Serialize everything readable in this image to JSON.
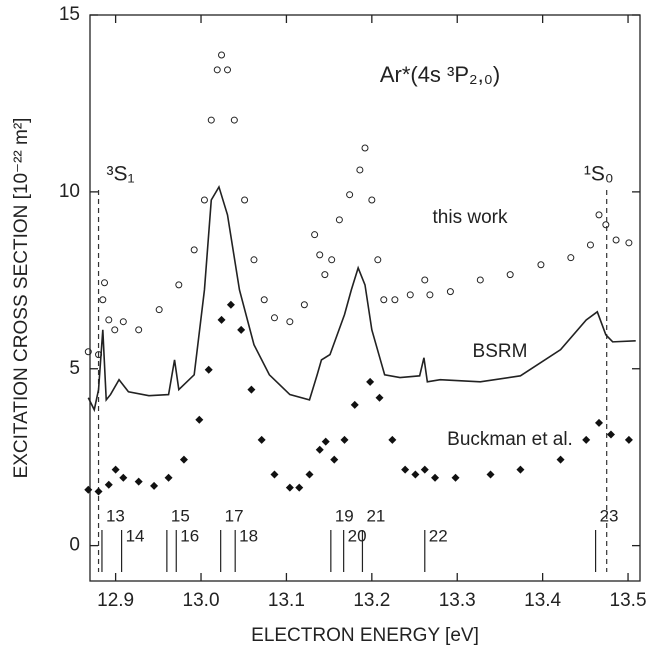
{
  "chart_data": {
    "type": "scatter",
    "title": "Ar*(4s ³P₂,₀)",
    "x_label": "ELECTRON ENERGY [eV]",
    "y_label": "EXCITATION CROSS SECTION [10⁻²² m²]",
    "xlim": [
      12.87,
      13.514
    ],
    "ylim": [
      -1,
      15
    ],
    "xticks": [
      12.9,
      {
        "value": 13.0,
        "label": "13.0"
      },
      13.1,
      13.2,
      13.3,
      13.4,
      13.5
    ],
    "yticks": [
      0,
      5,
      10,
      15
    ],
    "series": [
      {
        "name": "this work",
        "marker": "open-circle",
        "color": "#222222",
        "x": [
          12.868,
          12.88,
          12.885,
          12.887,
          12.892,
          12.899,
          12.909,
          12.927,
          12.951,
          12.974,
          12.992,
          13.004,
          13.012,
          13.019,
          13.024,
          13.031,
          13.039,
          13.051,
          13.062,
          13.074,
          13.086,
          13.104,
          13.121,
          13.133,
          13.139,
          13.145,
          13.153,
          13.162,
          13.174,
          13.186,
          13.192,
          13.2,
          13.207,
          13.214,
          13.227,
          13.245,
          13.262,
          13.268,
          13.292,
          13.327,
          13.362,
          13.398,
          13.433,
          13.456,
          13.466,
          13.474,
          13.486,
          13.501
        ],
        "values": [
          5.48,
          5.4,
          6.95,
          7.43,
          6.38,
          6.1,
          6.33,
          6.1,
          6.67,
          7.37,
          8.36,
          9.77,
          12.03,
          13.45,
          13.87,
          13.45,
          12.03,
          9.77,
          8.08,
          6.95,
          6.44,
          6.33,
          6.81,
          8.79,
          8.22,
          7.66,
          8.08,
          9.21,
          9.92,
          10.62,
          11.24,
          9.77,
          8.08,
          6.95,
          6.95,
          7.09,
          7.51,
          7.09,
          7.18,
          7.51,
          7.66,
          7.94,
          8.14,
          8.5,
          9.35,
          9.07,
          8.64,
          8.56
        ]
      },
      {
        "name": "BSRM",
        "marker": "line",
        "color": "#222222",
        "x": [
          12.868,
          12.875,
          12.88,
          12.885,
          12.889,
          12.894,
          12.904,
          12.915,
          12.939,
          12.962,
          12.969,
          12.974,
          12.992,
          13.004,
          13.012,
          13.021,
          13.031,
          13.045,
          13.062,
          13.08,
          13.104,
          13.127,
          13.136,
          13.141,
          13.151,
          13.168,
          13.176,
          13.184,
          13.192,
          13.2,
          13.215,
          13.233,
          13.256,
          13.261,
          13.265,
          13.28,
          13.327,
          13.374,
          13.421,
          13.451,
          13.464,
          13.474,
          13.482,
          13.509
        ],
        "values": [
          4.18,
          3.84,
          4.41,
          6.1,
          4.12,
          4.27,
          4.69,
          4.35,
          4.24,
          4.27,
          5.25,
          4.41,
          4.83,
          7.23,
          9.77,
          10.14,
          9.35,
          7.23,
          5.68,
          4.83,
          4.27,
          4.12,
          4.83,
          5.25,
          5.4,
          6.53,
          7.23,
          7.85,
          7.37,
          6.1,
          4.83,
          4.75,
          4.8,
          5.31,
          4.63,
          4.69,
          4.63,
          4.8,
          5.54,
          6.38,
          6.61,
          5.96,
          5.76,
          5.79
        ]
      },
      {
        "name": "Buckman et al.",
        "marker": "diamond",
        "color": "#111111",
        "x": [
          12.868,
          12.88,
          12.892,
          12.9,
          12.909,
          12.927,
          12.945,
          12.962,
          12.98,
          12.998,
          13.009,
          13.024,
          13.035,
          13.047,
          13.059,
          13.071,
          13.086,
          13.104,
          13.115,
          13.127,
          13.139,
          13.146,
          13.156,
          13.168,
          13.18,
          13.198,
          13.209,
          13.224,
          13.239,
          13.251,
          13.262,
          13.274,
          13.298,
          13.339,
          13.374,
          13.421,
          13.451,
          13.466,
          13.48,
          13.501
        ],
        "values": [
          1.58,
          1.53,
          1.72,
          2.15,
          1.92,
          1.81,
          1.69,
          1.92,
          2.43,
          3.56,
          4.97,
          6.38,
          6.81,
          6.1,
          4.41,
          2.99,
          2.01,
          1.64,
          1.64,
          2.01,
          2.71,
          2.94,
          2.43,
          2.99,
          3.98,
          4.63,
          4.18,
          2.99,
          2.15,
          2.01,
          2.15,
          1.92,
          1.92,
          2.01,
          2.15,
          2.43,
          2.99,
          3.47,
          3.14,
          2.99
        ]
      }
    ],
    "thresholds": [
      {
        "label": "³S₁",
        "x": 12.88
      },
      {
        "label": "¹S₀",
        "x": 13.475
      }
    ],
    "resonances": [
      {
        "label": "13",
        "x": 12.884
      },
      {
        "label": "14",
        "x": 12.907
      },
      {
        "label": "15",
        "x": 12.96
      },
      {
        "label": "16",
        "x": 12.971
      },
      {
        "label": "17",
        "x": 13.023
      },
      {
        "label": "18",
        "x": 13.04
      },
      {
        "label": "19",
        "x": 13.152
      },
      {
        "label": "20",
        "x": 13.167
      },
      {
        "label": "21",
        "x": 13.189
      },
      {
        "label": "22",
        "x": 13.262
      },
      {
        "label": "23",
        "x": 13.462
      }
    ]
  }
}
